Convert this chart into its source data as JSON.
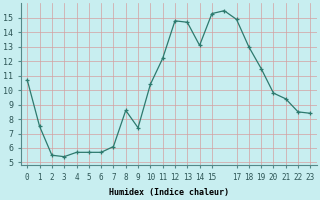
{
  "x": [
    0,
    1,
    2,
    3,
    4,
    5,
    6,
    7,
    8,
    9,
    10,
    11,
    12,
    13,
    14,
    15,
    16,
    17,
    18,
    19,
    20,
    21,
    22,
    23
  ],
  "y": [
    10.7,
    7.5,
    5.5,
    5.4,
    5.7,
    5.7,
    5.7,
    6.1,
    8.6,
    7.4,
    10.4,
    12.2,
    14.8,
    14.7,
    13.1,
    15.3,
    15.5,
    14.9,
    13.0,
    11.5,
    9.8,
    9.4,
    8.5,
    8.4
  ],
  "xlabel": "Humidex (Indice chaleur)",
  "ylim": [
    4.8,
    16.0
  ],
  "xlim": [
    -0.5,
    23.5
  ],
  "yticks": [
    5,
    6,
    7,
    8,
    9,
    10,
    11,
    12,
    13,
    14,
    15
  ],
  "xtick_positions": [
    0,
    1,
    2,
    3,
    4,
    5,
    6,
    7,
    8,
    9,
    10,
    11,
    12,
    13,
    14,
    15,
    17,
    18,
    19,
    20,
    21,
    22,
    23
  ],
  "xtick_labels": [
    "0",
    "1",
    "2",
    "3",
    "4",
    "5",
    "6",
    "7",
    "8",
    "9",
    "10",
    "11",
    "12",
    "13",
    "14",
    "15",
    "17",
    "18",
    "19",
    "20",
    "21",
    "22",
    "23"
  ],
  "line_color": "#2d7a6e",
  "marker": "+",
  "bg_color": "#c8eef0",
  "grid_color": "#d4a0a0",
  "xlabel_fontsize": 6.0,
  "tick_fontsize": 5.5,
  "ytick_fontsize": 6.0,
  "linewidth": 0.9,
  "markersize": 3.5,
  "markeredgewidth": 0.9
}
